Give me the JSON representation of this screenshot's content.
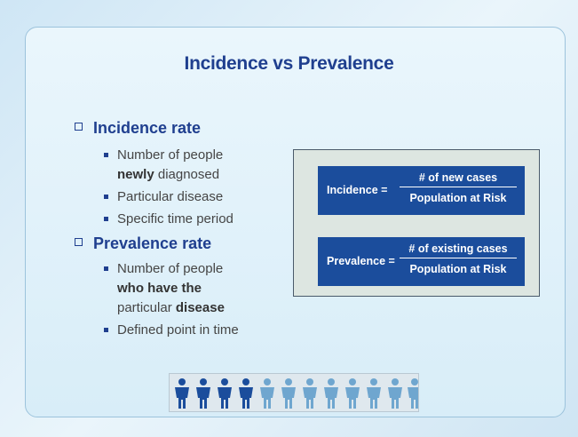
{
  "title": "Incidence vs Prevalence",
  "sections": [
    {
      "heading": "Incidence rate",
      "bullets": [
        [
          "Number of people",
          "newly",
          "diagnosed"
        ],
        [
          "Particular disease"
        ],
        [
          "Specific time period"
        ]
      ]
    },
    {
      "heading": "Prevalence rate",
      "bullets": [
        [
          "Number of people",
          "who have the",
          "particular",
          "disease"
        ],
        [
          "Defined point in time"
        ]
      ]
    }
  ],
  "formulas": [
    {
      "label": "Incidence =",
      "numerator": "# of new cases",
      "denominator": "Population at Risk"
    },
    {
      "label": "Prevalence =",
      "numerator": "# of existing cases",
      "denominator": "Population at Risk"
    }
  ]
}
